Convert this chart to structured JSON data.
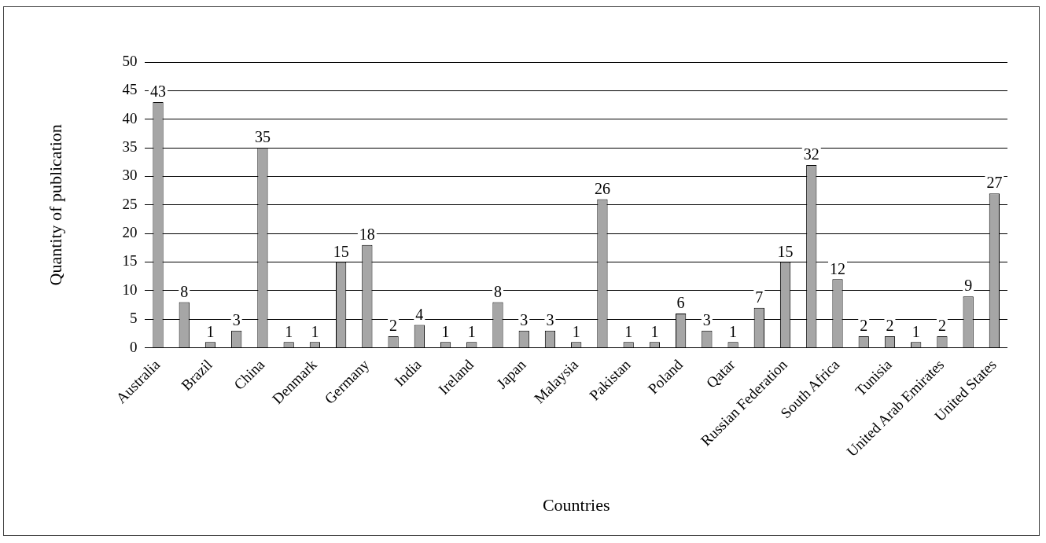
{
  "chart_data": {
    "type": "bar",
    "xlabel": "Countries",
    "ylabel": "Quantity of publication",
    "categories": [
      "Australia",
      null,
      "Brazil",
      null,
      "China",
      null,
      "Denmark",
      null,
      "Germany",
      null,
      "India",
      null,
      "Ireland",
      null,
      "Japan",
      null,
      "Malaysia",
      null,
      "Pakistan",
      null,
      "Poland",
      null,
      "Qatar",
      null,
      "Russian Federation",
      null,
      "South Africa",
      null,
      "Tunisia",
      null,
      "United Arab Emirates",
      null,
      "United States"
    ],
    "values": [
      43,
      8,
      1,
      3,
      35,
      1,
      1,
      15,
      18,
      2,
      4,
      1,
      1,
      8,
      3,
      3,
      1,
      26,
      1,
      1,
      6,
      3,
      1,
      7,
      15,
      32,
      12,
      2,
      2,
      1,
      2,
      9,
      27
    ],
    "color": "#a6a6a6",
    "ylim": [
      0,
      50
    ],
    "yticks": [
      0,
      5,
      10,
      15,
      20,
      25,
      30,
      35,
      40,
      45,
      50
    ],
    "grid": "y",
    "data_labels": true,
    "legend": false
  }
}
